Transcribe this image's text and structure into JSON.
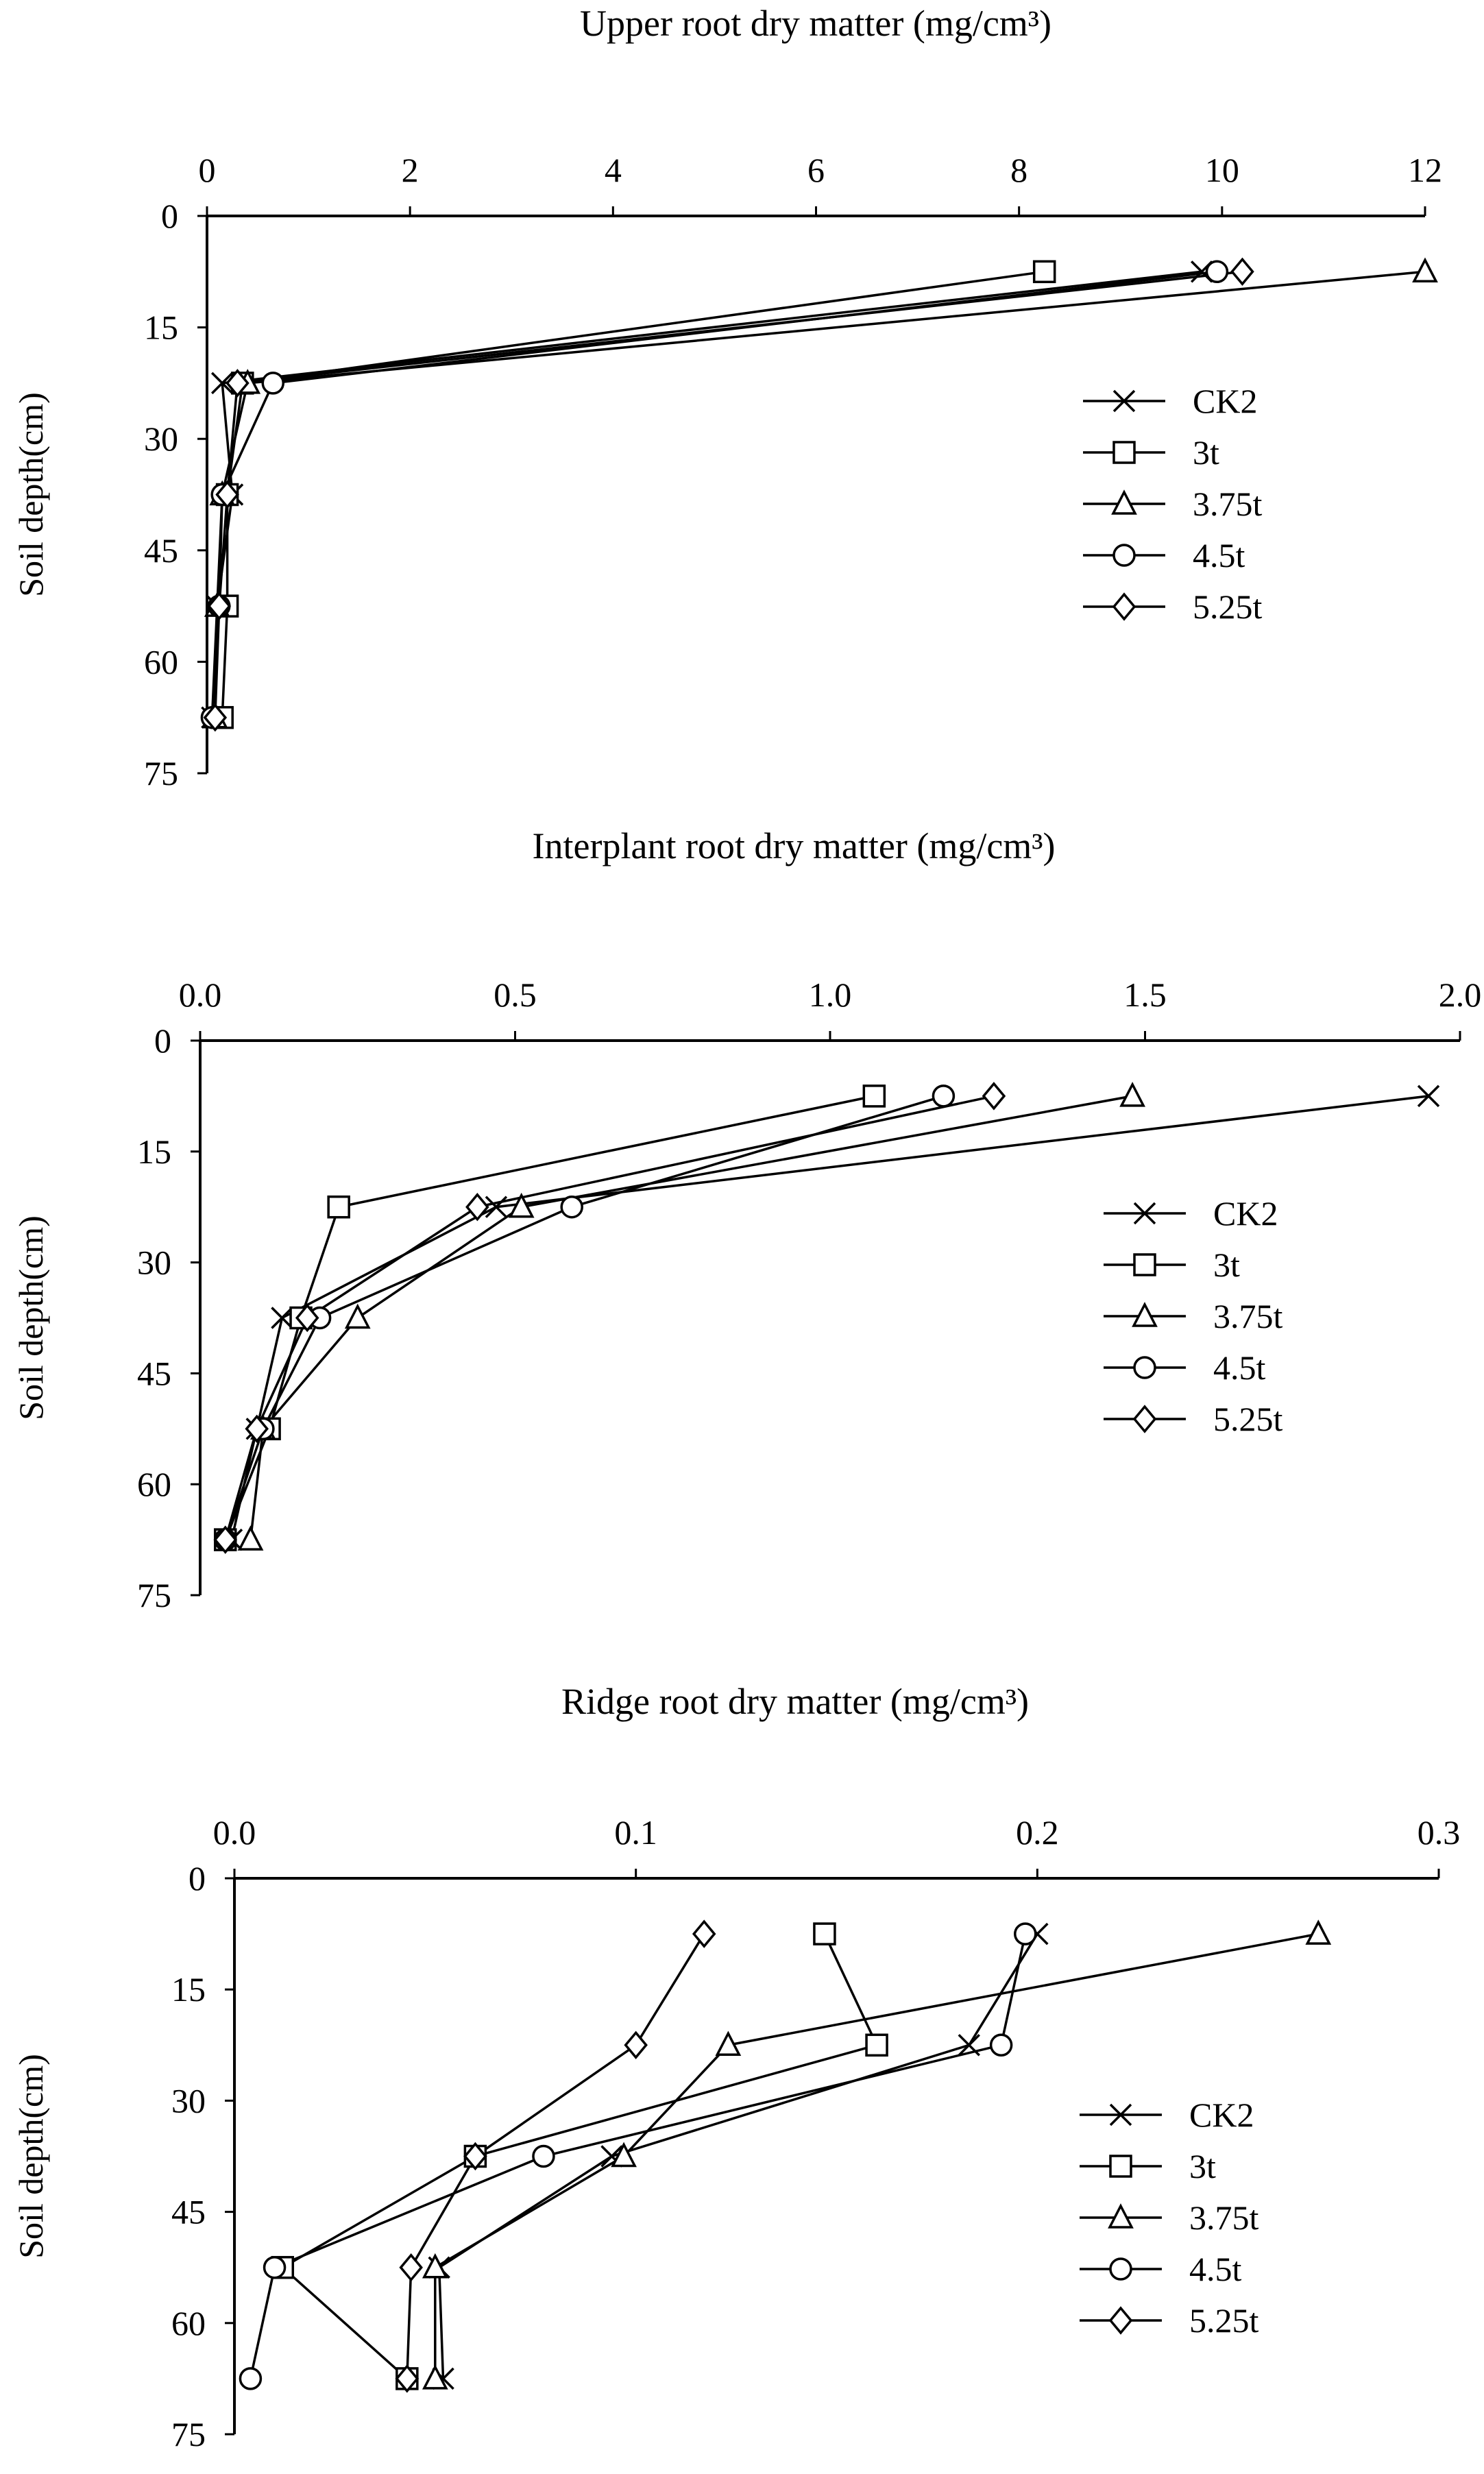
{
  "chart_data": [
    {
      "type": "line",
      "title": "Upper root dry matter (mg/cm³)",
      "xlabel": "Upper root dry matter (mg/cm³)",
      "ylabel": "Soil depth(cm)",
      "xlim": [
        0,
        12
      ],
      "ylim": [
        0,
        75
      ],
      "x_ticks": [
        "0",
        "2",
        "4",
        "6",
        "8",
        "10",
        "12"
      ],
      "x_tick_values": [
        0,
        2,
        4,
        6,
        8,
        10,
        12
      ],
      "y_ticks": [
        "0",
        "15",
        "30",
        "45",
        "60",
        "75"
      ],
      "y_tick_values": [
        0,
        15,
        30,
        45,
        60,
        75
      ],
      "depths": [
        7.5,
        22.5,
        37.5,
        52.5,
        67.5
      ],
      "legend_position": "right",
      "series": [
        {
          "name": "CK2",
          "marker": "x",
          "values": [
            9.8,
            0.15,
            0.25,
            0.1,
            0.05
          ]
        },
        {
          "name": "3t",
          "marker": "square",
          "values": [
            8.25,
            0.35,
            0.2,
            0.2,
            0.15
          ]
        },
        {
          "name": "3.75t",
          "marker": "triangle",
          "values": [
            12.0,
            0.4,
            0.15,
            0.1,
            0.08
          ]
        },
        {
          "name": "4.5t",
          "marker": "circle",
          "values": [
            9.95,
            0.65,
            0.15,
            0.12,
            0.05
          ]
        },
        {
          "name": "5.25t",
          "marker": "diamond",
          "values": [
            10.2,
            0.3,
            0.2,
            0.12,
            0.08
          ]
        }
      ]
    },
    {
      "type": "line",
      "title": "Interplant root dry matter (mg/cm³)",
      "xlabel": "Interplant root dry matter (mg/cm³)",
      "ylabel": "Soil depth(cm)",
      "xlim": [
        0,
        2.0
      ],
      "ylim": [
        0,
        75
      ],
      "x_ticks": [
        "0.0",
        "0.5",
        "1.0",
        "1.5",
        "2.0"
      ],
      "x_tick_values": [
        0,
        0.5,
        1.0,
        1.5,
        2.0
      ],
      "y_ticks": [
        "0",
        "15",
        "30",
        "45",
        "60",
        "75"
      ],
      "y_tick_values": [
        0,
        15,
        30,
        45,
        60,
        75
      ],
      "depths": [
        7.5,
        22.5,
        37.5,
        52.5,
        67.5
      ],
      "legend_position": "right",
      "series": [
        {
          "name": "CK2",
          "marker": "x",
          "values": [
            1.95,
            0.47,
            0.13,
            0.09,
            0.05
          ]
        },
        {
          "name": "3t",
          "marker": "square",
          "values": [
            1.07,
            0.22,
            0.16,
            0.11,
            0.04
          ]
        },
        {
          "name": "3.75t",
          "marker": "triangle",
          "values": [
            1.48,
            0.51,
            0.25,
            0.1,
            0.08
          ]
        },
        {
          "name": "4.5t",
          "marker": "circle",
          "values": [
            1.18,
            0.59,
            0.19,
            0.1,
            0.04
          ]
        },
        {
          "name": "5.25t",
          "marker": "diamond",
          "values": [
            1.26,
            0.44,
            0.17,
            0.09,
            0.04
          ]
        }
      ]
    },
    {
      "type": "line",
      "title": "Ridge root dry matter (mg/cm³)",
      "xlabel": "Ridge root dry matter (mg/cm³)",
      "ylabel": "Soil depth(cm)",
      "xlim": [
        0,
        0.3
      ],
      "ylim": [
        0,
        75
      ],
      "x_ticks": [
        "0.0",
        "0.1",
        "0.2",
        "0.3"
      ],
      "x_tick_values": [
        0,
        0.1,
        0.2,
        0.3
      ],
      "y_ticks": [
        "0",
        "15",
        "30",
        "45",
        "60",
        "75"
      ],
      "y_tick_values": [
        0,
        15,
        30,
        45,
        60,
        75
      ],
      "depths": [
        7.5,
        22.5,
        37.5,
        52.5,
        67.5
      ],
      "legend_position": "right",
      "series": [
        {
          "name": "CK2",
          "marker": "x",
          "values": [
            0.2,
            0.183,
            0.094,
            0.051,
            0.052
          ]
        },
        {
          "name": "3t",
          "marker": "square",
          "values": [
            0.147,
            0.16,
            0.06,
            0.012,
            0.043
          ]
        },
        {
          "name": "3.75t",
          "marker": "triangle",
          "values": [
            0.27,
            0.123,
            0.097,
            0.05,
            0.05
          ]
        },
        {
          "name": "4.5t",
          "marker": "circle",
          "values": [
            0.197,
            0.191,
            0.077,
            0.01,
            0.004
          ]
        },
        {
          "name": "5.25t",
          "marker": "diamond",
          "values": [
            0.117,
            0.1,
            0.06,
            0.044,
            0.043
          ]
        }
      ]
    }
  ]
}
